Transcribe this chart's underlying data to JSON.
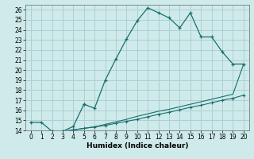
{
  "title": "",
  "xlabel": "Humidex (Indice chaleur)",
  "xlim": [
    -0.5,
    20.5
  ],
  "ylim": [
    14,
    26.5
  ],
  "xticks": [
    0,
    1,
    2,
    3,
    4,
    5,
    6,
    7,
    8,
    9,
    10,
    11,
    12,
    13,
    14,
    15,
    16,
    17,
    18,
    19,
    20
  ],
  "yticks": [
    14,
    15,
    16,
    17,
    18,
    19,
    20,
    21,
    22,
    23,
    24,
    25,
    26
  ],
  "bg_color": "#ceeaea",
  "grid_color": "#aacccc",
  "line_color": "#1a6e6e",
  "line1_x": [
    0,
    1,
    2,
    3,
    4,
    5,
    5,
    6,
    7,
    8,
    9,
    10,
    11,
    12,
    13,
    14,
    15,
    16,
    17,
    18,
    19,
    20
  ],
  "line1_y": [
    14.8,
    14.8,
    13.9,
    13.9,
    14.4,
    16.6,
    16.6,
    16.2,
    19.0,
    21.1,
    23.1,
    24.9,
    26.2,
    25.7,
    25.2,
    24.2,
    25.7,
    23.3,
    23.3,
    21.8,
    20.6,
    20.6
  ],
  "line2_x": [
    2,
    3,
    4,
    5,
    6,
    7,
    8,
    9,
    10,
    11,
    12,
    13,
    14,
    15,
    16,
    17,
    18,
    19,
    20
  ],
  "line2_y": [
    13.9,
    13.9,
    14.05,
    14.2,
    14.35,
    14.5,
    14.7,
    14.9,
    15.1,
    15.35,
    15.6,
    15.8,
    16.05,
    16.3,
    16.5,
    16.75,
    17.0,
    17.2,
    17.5
  ],
  "line3_x": [
    2,
    3,
    4,
    5,
    6,
    7,
    8,
    9,
    10,
    11,
    12,
    13,
    14,
    15,
    16,
    17,
    18,
    19,
    20
  ],
  "line3_y": [
    13.9,
    13.9,
    14.05,
    14.2,
    14.35,
    14.6,
    14.85,
    15.1,
    15.4,
    15.65,
    15.9,
    16.1,
    16.35,
    16.6,
    16.85,
    17.1,
    17.35,
    17.6,
    20.6
  ]
}
